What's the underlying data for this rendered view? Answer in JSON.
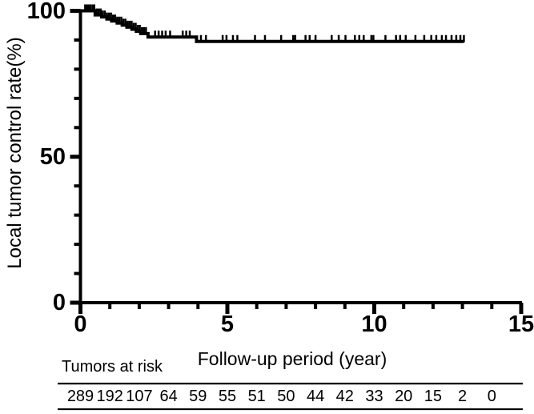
{
  "colors": {
    "ink": "#000000",
    "background": "#ffffff"
  },
  "chart_data": {
    "type": "line",
    "subtype": "kaplan-meier-step-curve",
    "title": "",
    "xlabel": "Follow-up period (year)",
    "ylabel": "Local tumor control rate(%)",
    "xlim": [
      0,
      15
    ],
    "ylim": [
      0,
      100
    ],
    "x_major_ticks": [
      0,
      5,
      10,
      15
    ],
    "x_minor_tick_step": 1,
    "y_major_ticks": [
      0,
      50,
      100
    ],
    "y_minor_tick_step": 10,
    "grid": "off",
    "legend": "none",
    "series": [
      {
        "name": "Local tumor control",
        "color": "#000000",
        "points": [
          [
            0,
            100
          ],
          [
            0.5,
            98.6
          ],
          [
            0.72,
            97.9
          ],
          [
            0.9,
            97.2
          ],
          [
            1.06,
            96.5
          ],
          [
            1.25,
            95.8
          ],
          [
            1.42,
            95.1
          ],
          [
            1.58,
            94.4
          ],
          [
            1.75,
            93.7
          ],
          [
            1.9,
            93.0
          ],
          [
            2.05,
            92.2
          ],
          [
            2.3,
            91.0
          ],
          [
            3.95,
            89.5
          ],
          [
            13.05,
            89.5
          ]
        ],
        "censor_times": [
          0.16,
          0.22,
          0.28,
          0.34,
          0.41,
          0.47,
          0.55,
          0.62,
          0.69,
          0.76,
          0.83,
          0.9,
          0.97,
          1.04,
          1.11,
          1.18,
          1.25,
          1.32,
          1.39,
          1.46,
          1.53,
          1.6,
          1.67,
          1.74,
          1.81,
          1.88,
          1.95,
          2.02,
          2.09,
          2.16,
          2.23,
          2.54,
          2.66,
          2.78,
          2.9,
          3.05,
          3.48,
          3.6,
          3.72,
          4.1,
          4.27,
          4.84,
          4.97,
          5.19,
          5.34,
          5.94,
          6.28,
          6.83,
          7.24,
          7.31,
          7.66,
          7.8,
          8.0,
          8.55,
          8.79,
          9.02,
          9.34,
          9.49,
          9.64,
          9.9,
          9.97,
          10.38,
          10.74,
          10.88,
          11.07,
          11.4,
          11.7,
          11.94,
          12.11,
          12.3,
          12.44,
          12.63,
          12.79,
          12.93,
          13.05
        ]
      }
    ],
    "risk_table": {
      "label": "Tumors at risk",
      "times": [
        0,
        1,
        2,
        3,
        4,
        5,
        6,
        7,
        8,
        9,
        10,
        11,
        12,
        13,
        14
      ],
      "counts": [
        289,
        192,
        107,
        64,
        59,
        55,
        51,
        50,
        44,
        42,
        33,
        20,
        15,
        2,
        0
      ]
    }
  }
}
